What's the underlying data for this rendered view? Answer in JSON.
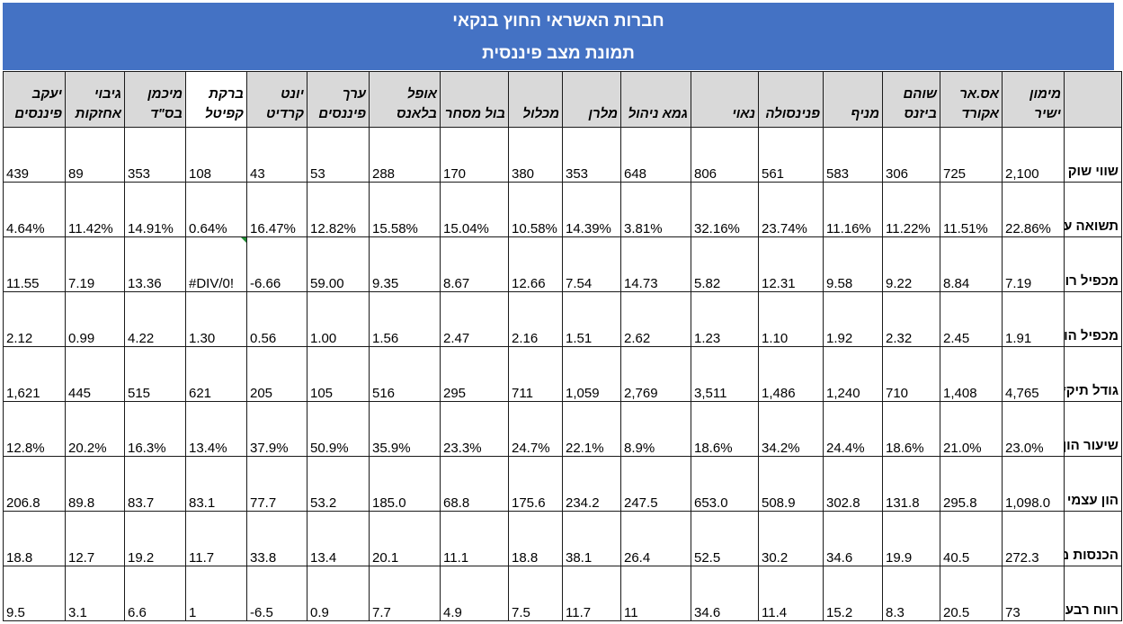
{
  "title": "חברות האשראי החוץ בנקאי",
  "subtitle": "תמונת מצב פיננסית",
  "companies": [
    "מימון ישיר",
    "אס.אר אקורד",
    "שוהם ביזנס",
    "מניף",
    "פנינסולה",
    "נאוי",
    "גמא ניהול",
    "מלרן",
    "מכלול",
    "בול מסחר",
    "אופל בלאנס",
    "ערך פיננסים",
    "יונט קרדיט",
    "ברקת קפיטל",
    "מיכמן בס\"ד",
    "גיבוי אחזקות",
    "יעקב פיננסים"
  ],
  "rows": [
    {
      "label": "שווי שוק",
      "values": [
        "2,100",
        "725",
        "306",
        "583",
        "561",
        "806",
        "648",
        "353",
        "380",
        "170",
        "288",
        "53",
        "43",
        "108",
        "353",
        "89",
        "439"
      ]
    },
    {
      "label": "תשואה על התיק",
      "values": [
        "22.86%",
        "11.51%",
        "11.22%",
        "11.16%",
        "23.74%",
        "32.16%",
        "3.81%",
        "14.39%",
        "10.58%",
        "15.04%",
        "15.58%",
        "12.82%",
        "16.47%",
        "0.64%",
        "14.91%",
        "11.42%",
        "4.64%"
      ]
    },
    {
      "label": "מכפיל רווח",
      "values": [
        "7.19",
        "8.84",
        "9.22",
        "9.58",
        "12.31",
        "5.82",
        "14.73",
        "7.54",
        "12.66",
        "8.67",
        "9.35",
        "59.00",
        "-6.66",
        "#DIV/0!",
        "13.36",
        "7.19",
        "11.55"
      ]
    },
    {
      "label": "מכפיל הון",
      "values": [
        "1.91",
        "2.45",
        "2.32",
        "1.92",
        "1.10",
        "1.23",
        "2.62",
        "1.51",
        "2.16",
        "2.47",
        "1.56",
        "1.00",
        "0.56",
        "1.30",
        "4.22",
        "0.99",
        "2.12"
      ]
    },
    {
      "label": "גודל תיק*",
      "values": [
        "4,765",
        "1,408",
        "710",
        "1,240",
        "1,486",
        "3,511",
        "2,769",
        "1,059",
        "711",
        "295",
        "516",
        "105",
        "205",
        "621",
        "515",
        "445",
        "1,621"
      ]
    },
    {
      "label": "שיעור הון למאזן",
      "values": [
        "23.0%",
        "21.0%",
        "18.6%",
        "24.4%",
        "34.2%",
        "18.6%",
        "8.9%",
        "22.1%",
        "24.7%",
        "23.3%",
        "35.9%",
        "50.9%",
        "37.9%",
        "13.4%",
        "16.3%",
        "20.2%",
        "12.8%"
      ]
    },
    {
      "label": "הון עצמי",
      "values": [
        "1,098.0",
        "295.8",
        "131.8",
        "302.8",
        "508.9",
        "653.0",
        "247.5",
        "234.2",
        "175.6",
        "68.8",
        "185.0",
        "53.2",
        "77.7",
        "83.1",
        "83.7",
        "89.8",
        "206.8"
      ]
    },
    {
      "label": "הכנסות מימון",
      "values": [
        "272.3",
        "40.5",
        "19.9",
        "34.6",
        "30.2",
        "52.5",
        "26.4",
        "38.1",
        "18.8",
        "11.1",
        "20.1",
        "13.4",
        "33.8",
        "11.7",
        "19.2",
        "12.7",
        "18.8"
      ]
    },
    {
      "label": "רווח רבעוני",
      "values": [
        "73",
        "20.5",
        "8.3",
        "15.2",
        "11.4",
        "34.6",
        "11",
        "11.7",
        "7.5",
        "4.9",
        "7.7",
        "0.9",
        "-6.5",
        "1",
        "6.6",
        "3.1",
        "9.5"
      ]
    }
  ]
}
